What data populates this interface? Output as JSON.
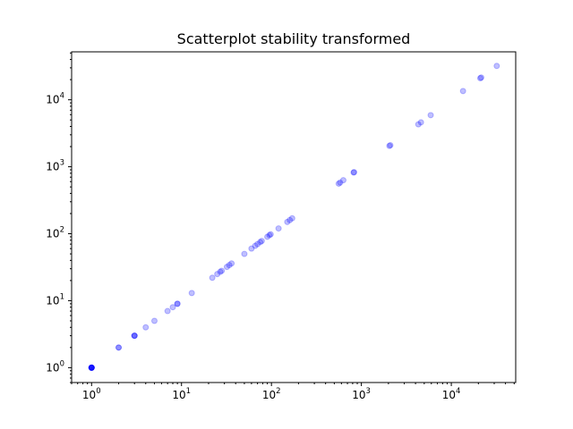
{
  "chart_data": {
    "type": "scatter",
    "title": "Scatterplot stability transformed",
    "xlabel": "",
    "ylabel": "",
    "x_scale": "log",
    "y_scale": "log",
    "xlim": [
      0.6,
      52000
    ],
    "ylim": [
      0.6,
      52000
    ],
    "grid": false,
    "marker_color": "#0000ff",
    "marker_alpha": 0.25,
    "x_tick_labels": [
      {
        "value": 1,
        "base": "10",
        "exp": "0"
      },
      {
        "value": 10,
        "base": "10",
        "exp": "1"
      },
      {
        "value": 100,
        "base": "10",
        "exp": "2"
      },
      {
        "value": 1000,
        "base": "10",
        "exp": "3"
      },
      {
        "value": 10000,
        "base": "10",
        "exp": "4"
      }
    ],
    "y_tick_labels": [
      {
        "value": 1,
        "base": "10",
        "exp": "0"
      },
      {
        "value": 10,
        "base": "10",
        "exp": "1"
      },
      {
        "value": 100,
        "base": "10",
        "exp": "2"
      },
      {
        "value": 1000,
        "base": "10",
        "exp": "3"
      },
      {
        "value": 10000,
        "base": "10",
        "exp": "4"
      }
    ],
    "x": [
      1,
      1,
      1,
      1,
      1,
      1,
      1,
      1,
      2,
      2,
      3,
      3,
      3,
      4,
      5,
      7,
      8,
      9,
      9,
      13,
      22,
      25,
      27,
      28,
      32,
      34,
      36,
      50,
      60,
      66,
      70,
      75,
      78,
      90,
      95,
      98,
      120,
      150,
      160,
      170,
      560,
      580,
      630,
      820,
      830,
      2050,
      2100,
      4300,
      4600,
      5900,
      13500,
      21000,
      21500,
      32000
    ],
    "y": [
      1,
      1,
      1,
      1,
      1,
      1,
      1,
      1,
      2,
      2,
      3,
      3,
      3,
      4,
      5,
      7,
      8,
      9,
      9,
      13,
      22,
      25,
      27,
      28,
      32,
      34,
      36,
      50,
      60,
      66,
      70,
      75,
      78,
      90,
      95,
      98,
      120,
      150,
      160,
      170,
      560,
      580,
      630,
      820,
      830,
      2050,
      2100,
      4300,
      4600,
      5900,
      13500,
      21000,
      21500,
      32000
    ]
  }
}
